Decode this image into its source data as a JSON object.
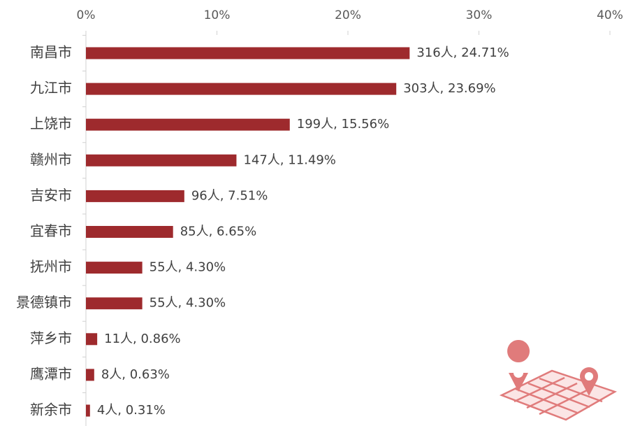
{
  "chart_data": {
    "type": "bar",
    "orientation": "horizontal",
    "categories": [
      "南昌市",
      "九江市",
      "上饶市",
      "赣州市",
      "吉安市",
      "宜春市",
      "抚州市",
      "景德镇市",
      "萍乡市",
      "鹰潭市",
      "新余市"
    ],
    "values": [
      24.71,
      23.69,
      15.56,
      11.49,
      7.51,
      6.65,
      4.3,
      4.3,
      0.86,
      0.63,
      0.31
    ],
    "value_labels": [
      "316人, 24.71%",
      "303人, 23.69%",
      "199人, 15.56%",
      "147人, 11.49%",
      "96人, 7.51%",
      "85人, 6.65%",
      "55人, 4.30%",
      "55人, 4.30%",
      "11人, 0.86%",
      "8人, 0.63%",
      "4人, 0.31%"
    ],
    "color": "#9e2a2d",
    "xlim": [
      0,
      40
    ],
    "xticks": [
      {
        "value": 0,
        "label": "0%"
      },
      {
        "value": 10,
        "label": "10%"
      },
      {
        "value": 20,
        "label": "20%"
      },
      {
        "value": 30,
        "label": "30%"
      },
      {
        "value": 40,
        "label": "40%"
      }
    ],
    "grid": false
  }
}
